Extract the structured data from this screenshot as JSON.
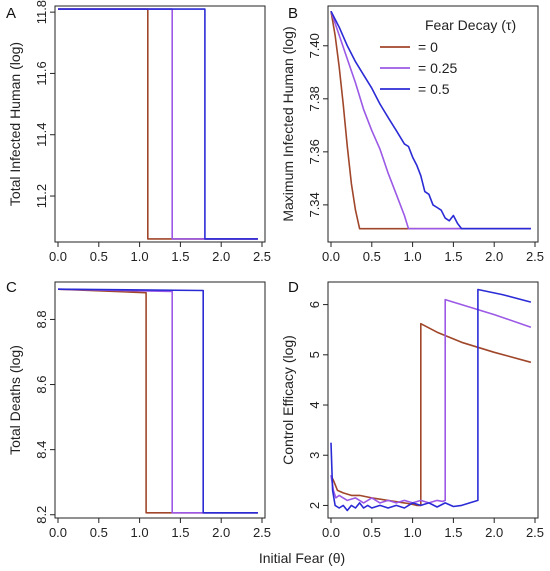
{
  "colors": {
    "tau_0": "#a0462a",
    "tau_025": "#9b59e6",
    "tau_05": "#2b2bd6"
  },
  "xlabel": "Initial Fear (θ)",
  "legend": {
    "title": "Fear Decay (τ)",
    "entries": [
      "= 0",
      "= 0.25",
      "= 0.5"
    ],
    "placement": "top-right of panel B"
  },
  "chart_data": [
    {
      "panel": "A",
      "type": "line",
      "ylabel": "Total Infected Human (log)",
      "xlim": [
        0,
        2.5
      ],
      "ylim": [
        11.05,
        11.82
      ],
      "xticks": [
        "0.0",
        "0.5",
        "1.0",
        "1.5",
        "2.0",
        "2.5"
      ],
      "yticks": [
        "11.2",
        "11.4",
        "11.6",
        "11.8"
      ],
      "series": [
        {
          "key": "tau_0",
          "x": [
            0,
            1.1,
            1.1,
            2.45
          ],
          "y": [
            11.81,
            11.81,
            11.06,
            11.06
          ]
        },
        {
          "key": "tau_025",
          "x": [
            0,
            1.4,
            1.4,
            2.45
          ],
          "y": [
            11.81,
            11.81,
            11.06,
            11.06
          ]
        },
        {
          "key": "tau_05",
          "x": [
            0,
            1.8,
            1.8,
            2.45
          ],
          "y": [
            11.81,
            11.81,
            11.06,
            11.06
          ]
        }
      ]
    },
    {
      "panel": "B",
      "type": "line",
      "ylabel": "Maximum Infected Human (log)",
      "xlim": [
        0,
        2.5
      ],
      "ylim": [
        7.326,
        7.415
      ],
      "xticks": [
        "0.0",
        "0.5",
        "1.0",
        "1.5",
        "2.0",
        "2.5"
      ],
      "yticks": [
        "7.34",
        "7.36",
        "7.38",
        "7.40"
      ],
      "series": [
        {
          "key": "tau_0",
          "x": [
            0,
            0.05,
            0.1,
            0.15,
            0.2,
            0.25,
            0.3,
            0.35,
            2.45
          ],
          "y": [
            7.413,
            7.404,
            7.392,
            7.378,
            7.362,
            7.348,
            7.338,
            7.331,
            7.331
          ]
        },
        {
          "key": "tau_025",
          "x": [
            0,
            0.1,
            0.2,
            0.3,
            0.4,
            0.5,
            0.6,
            0.7,
            0.8,
            0.9,
            0.95,
            2.45
          ],
          "y": [
            7.413,
            7.404,
            7.395,
            7.386,
            7.376,
            7.368,
            7.361,
            7.352,
            7.344,
            7.336,
            7.331,
            7.331
          ]
        },
        {
          "key": "tau_05",
          "x": [
            0,
            0.1,
            0.2,
            0.3,
            0.4,
            0.5,
            0.6,
            0.7,
            0.8,
            0.9,
            0.95,
            1.0,
            1.05,
            1.1,
            1.15,
            1.2,
            1.25,
            1.3,
            1.35,
            1.4,
            1.45,
            1.5,
            1.55,
            1.6,
            2.45
          ],
          "y": [
            7.413,
            7.407,
            7.4,
            7.394,
            7.389,
            7.384,
            7.378,
            7.373,
            7.368,
            7.363,
            7.362,
            7.358,
            7.355,
            7.351,
            7.345,
            7.344,
            7.34,
            7.339,
            7.338,
            7.335,
            7.334,
            7.336,
            7.333,
            7.331,
            7.331
          ]
        }
      ]
    },
    {
      "panel": "C",
      "type": "line",
      "ylabel": "Total Deaths (log)",
      "xlim": [
        0,
        2.5
      ],
      "ylim": [
        8.19,
        8.915
      ],
      "xticks": [
        "0.0",
        "0.5",
        "1.0",
        "1.5",
        "2.0",
        "2.5"
      ],
      "yticks": [
        "8.2",
        "8.4",
        "8.6",
        "8.8"
      ],
      "series": [
        {
          "key": "tau_0",
          "x": [
            0,
            1.07,
            1.08,
            1.08,
            2.45
          ],
          "y": [
            8.893,
            8.882,
            8.882,
            8.206,
            8.206
          ]
        },
        {
          "key": "tau_025",
          "x": [
            0,
            1.4,
            1.4,
            2.45
          ],
          "y": [
            8.893,
            8.886,
            8.206,
            8.206
          ]
        },
        {
          "key": "tau_05",
          "x": [
            0,
            1.78,
            1.78,
            2.45
          ],
          "y": [
            8.893,
            8.889,
            8.206,
            8.206
          ]
        }
      ]
    },
    {
      "panel": "D",
      "type": "line",
      "ylabel": "Control Efficacy (log)",
      "xlim": [
        0,
        2.5
      ],
      "ylim": [
        1.75,
        6.45
      ],
      "xticks": [
        "0.0",
        "0.5",
        "1.0",
        "1.5",
        "2.0",
        "2.5"
      ],
      "yticks": [
        "2",
        "3",
        "4",
        "5",
        "6"
      ],
      "series": [
        {
          "key": "tau_0",
          "x": [
            0,
            0.03,
            0.08,
            0.15,
            0.25,
            0.35,
            0.5,
            0.7,
            0.9,
            1.0,
            1.05,
            1.1,
            1.1,
            1.3,
            1.6,
            2.0,
            2.45
          ],
          "y": [
            2.6,
            2.5,
            2.3,
            2.25,
            2.2,
            2.2,
            2.15,
            2.1,
            2.05,
            2.02,
            2.0,
            2.0,
            5.62,
            5.45,
            5.25,
            5.05,
            4.85
          ]
        },
        {
          "key": "tau_025",
          "x": [
            0,
            0.03,
            0.06,
            0.1,
            0.2,
            0.3,
            0.4,
            0.5,
            0.6,
            0.7,
            0.8,
            0.9,
            1.0,
            1.1,
            1.2,
            1.3,
            1.37,
            1.4,
            1.4,
            1.7,
            2.0,
            2.45
          ],
          "y": [
            2.6,
            2.3,
            2.15,
            2.2,
            2.1,
            2.15,
            2.05,
            2.15,
            2.05,
            2.1,
            2.05,
            2.1,
            2.05,
            2.1,
            2.05,
            2.1,
            2.08,
            2.1,
            6.1,
            5.95,
            5.8,
            5.55
          ]
        },
        {
          "key": "tau_05",
          "x": [
            0,
            0.02,
            0.05,
            0.1,
            0.15,
            0.2,
            0.25,
            0.3,
            0.35,
            0.4,
            0.45,
            0.5,
            0.6,
            0.7,
            0.8,
            0.9,
            1.0,
            1.1,
            1.2,
            1.3,
            1.4,
            1.5,
            1.6,
            1.7,
            1.8,
            1.8,
            2.1,
            2.45
          ],
          "y": [
            3.25,
            2.3,
            2.0,
            1.95,
            2.0,
            1.9,
            2.0,
            1.95,
            2.05,
            1.95,
            2.0,
            1.95,
            2.0,
            1.95,
            2.0,
            1.95,
            2.05,
            2.0,
            2.05,
            1.97,
            2.05,
            1.98,
            2.0,
            2.05,
            2.1,
            6.3,
            6.2,
            6.05
          ]
        }
      ]
    }
  ]
}
